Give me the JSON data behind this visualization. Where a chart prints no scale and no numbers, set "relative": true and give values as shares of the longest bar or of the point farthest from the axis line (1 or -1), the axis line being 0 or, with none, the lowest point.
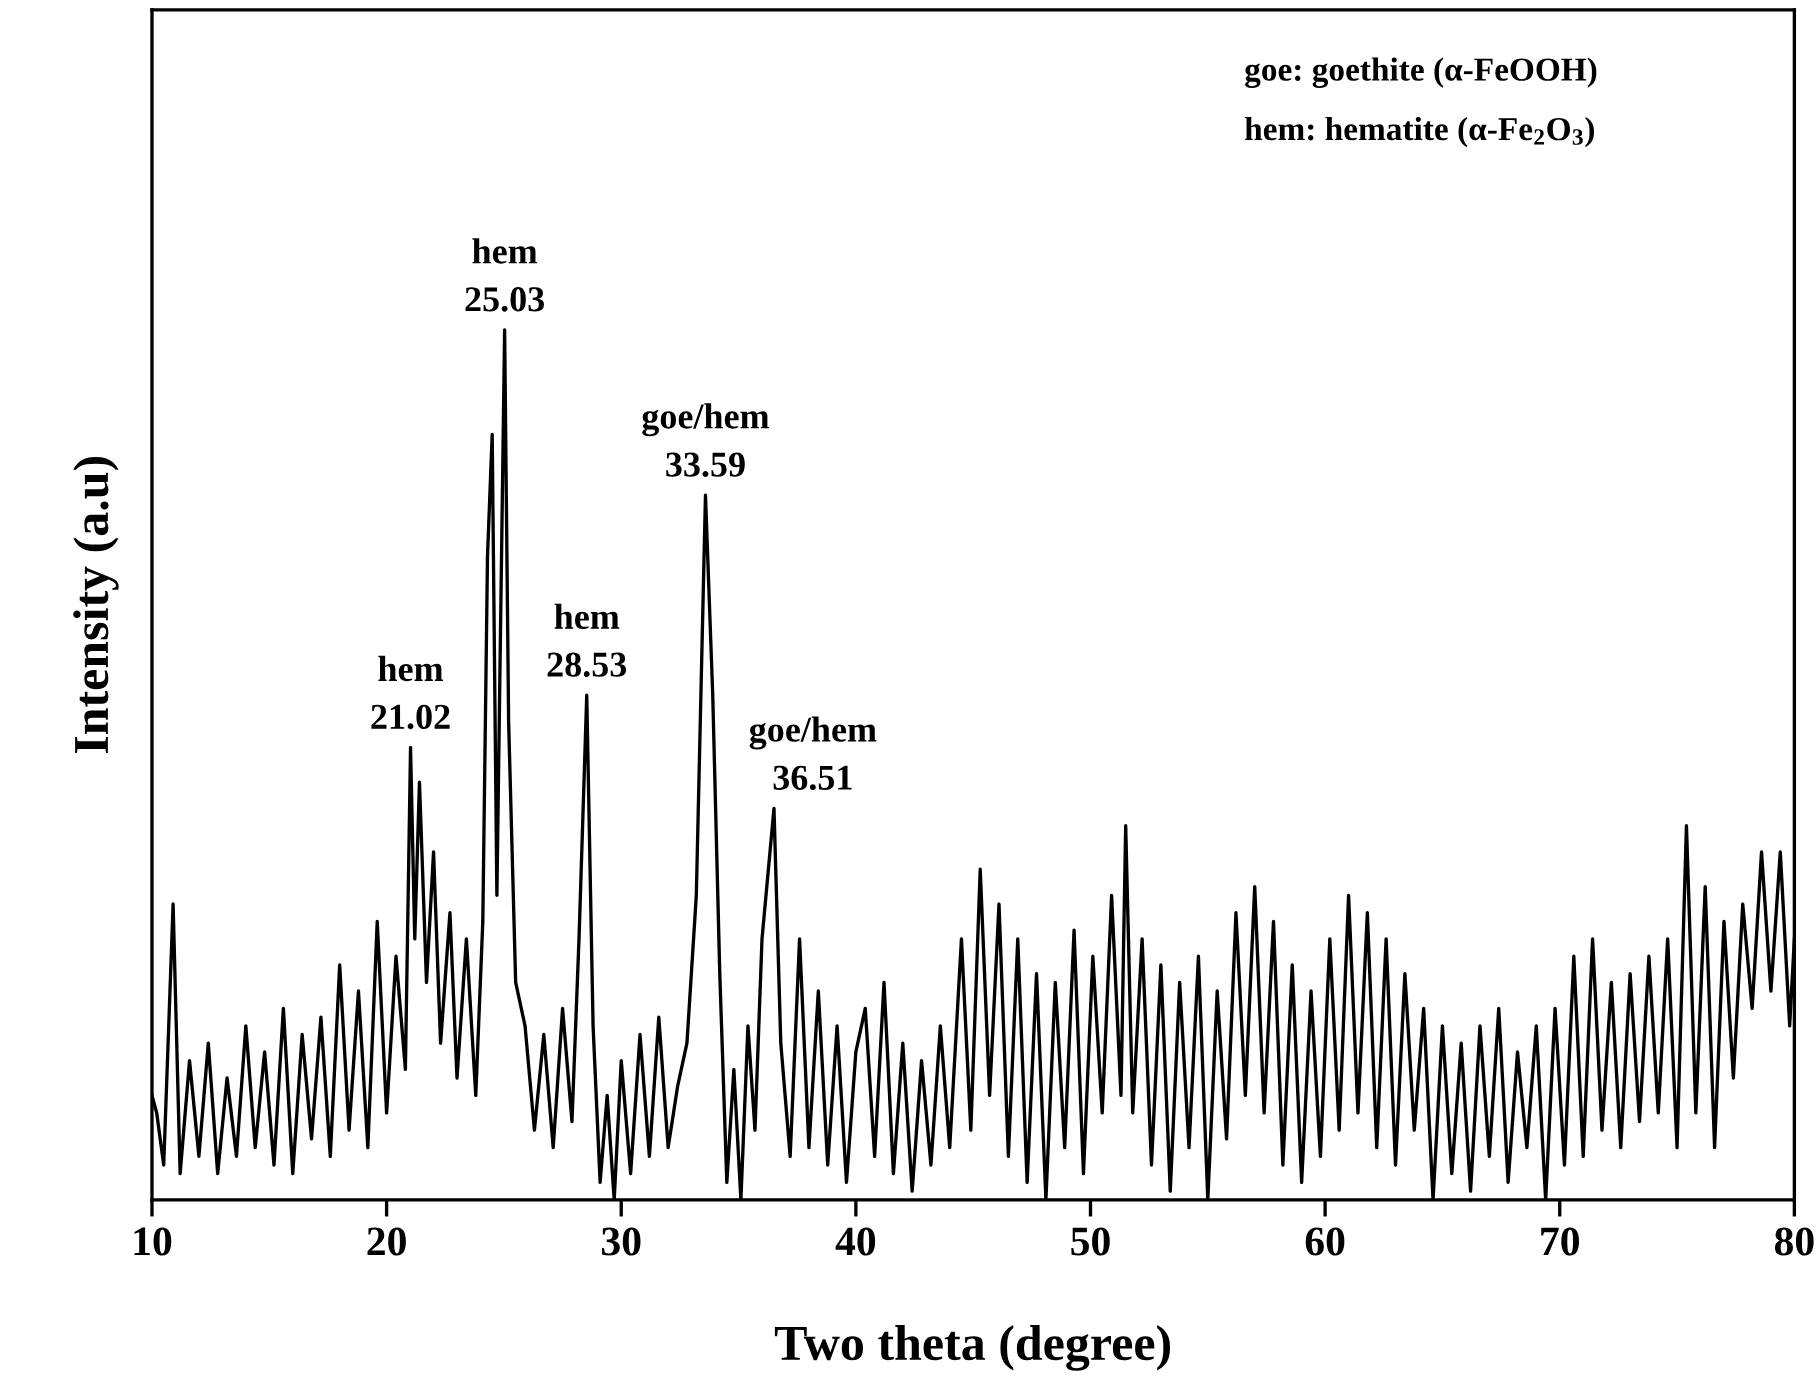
{
  "chart_data": {
    "type": "line",
    "xlabel": "Two theta (degree)",
    "ylabel": "Intensity (a.u)",
    "relative": true,
    "xlim": [
      10,
      80
    ],
    "xticks": [
      10,
      20,
      30,
      40,
      50,
      60,
      70,
      80
    ],
    "grid": false,
    "marker": "none",
    "line_style": "solid",
    "annotations": [
      {
        "text": "hem\n21.02",
        "x": 21.02,
        "y": 0.52
      },
      {
        "text": "hem\n25.03",
        "x": 25.03,
        "y": 1.0
      },
      {
        "text": "hem\n28.53",
        "x": 28.53,
        "y": 0.58
      },
      {
        "text": "goe/hem\n33.59",
        "x": 33.59,
        "y": 0.81
      },
      {
        "text": "goe/hem\n36.51",
        "x": 36.51,
        "y": 0.45
      },
      "goe: goethite (α-FeOOH)",
      "hem: hematite (α-Fe$_{2}$O$_{3}$)"
    ],
    "series": [
      {
        "color": "#000000",
        "x": [
          10.0,
          10.2,
          10.5,
          10.9,
          11.2,
          11.6,
          12.0,
          12.4,
          12.8,
          13.2,
          13.6,
          14.0,
          14.4,
          14.8,
          15.2,
          15.6,
          16.0,
          16.4,
          16.8,
          17.2,
          17.6,
          18.0,
          18.4,
          18.8,
          19.2,
          19.6,
          20.0,
          20.4,
          20.8,
          21.02,
          21.2,
          21.4,
          21.7,
          22.0,
          22.3,
          22.7,
          23.0,
          23.4,
          23.8,
          24.1,
          24.3,
          24.5,
          24.7,
          25.03,
          25.2,
          25.5,
          25.9,
          26.3,
          26.7,
          27.1,
          27.5,
          27.9,
          28.2,
          28.53,
          28.8,
          29.1,
          29.4,
          29.7,
          30.0,
          30.4,
          30.8,
          31.2,
          31.6,
          32.0,
          32.4,
          32.8,
          33.2,
          33.59,
          33.9,
          34.2,
          34.5,
          34.8,
          35.1,
          35.4,
          35.7,
          36.0,
          36.51,
          36.8,
          37.2,
          37.6,
          38.0,
          38.4,
          38.8,
          39.2,
          39.6,
          40.0,
          40.4,
          40.8,
          41.2,
          41.6,
          42.0,
          42.4,
          42.8,
          43.2,
          43.6,
          44.0,
          44.5,
          44.9,
          45.3,
          45.7,
          46.1,
          46.5,
          46.9,
          47.3,
          47.7,
          48.1,
          48.5,
          48.9,
          49.3,
          49.7,
          50.1,
          50.5,
          50.9,
          51.3,
          51.5,
          51.8,
          52.2,
          52.6,
          53.0,
          53.4,
          53.8,
          54.2,
          54.6,
          55.0,
          55.4,
          55.8,
          56.2,
          56.6,
          57.0,
          57.4,
          57.8,
          58.2,
          58.6,
          59.0,
          59.4,
          59.8,
          60.2,
          60.6,
          61.0,
          61.4,
          61.8,
          62.2,
          62.6,
          63.0,
          63.4,
          63.8,
          64.2,
          64.6,
          65.0,
          65.4,
          65.8,
          66.2,
          66.6,
          67.0,
          67.4,
          67.8,
          68.2,
          68.6,
          69.0,
          69.4,
          69.8,
          70.2,
          70.6,
          71.0,
          71.4,
          71.8,
          72.2,
          72.6,
          73.0,
          73.4,
          73.8,
          74.2,
          74.6,
          75.0,
          75.4,
          75.8,
          76.2,
          76.6,
          77.0,
          77.4,
          77.8,
          78.2,
          78.6,
          79.0,
          79.4,
          79.8,
          80.0
        ],
        "values": [
          0.12,
          0.1,
          0.04,
          0.34,
          0.03,
          0.16,
          0.05,
          0.18,
          0.03,
          0.14,
          0.05,
          0.2,
          0.06,
          0.17,
          0.04,
          0.22,
          0.03,
          0.19,
          0.07,
          0.21,
          0.05,
          0.27,
          0.08,
          0.24,
          0.06,
          0.32,
          0.1,
          0.28,
          0.15,
          0.52,
          0.3,
          0.48,
          0.25,
          0.4,
          0.18,
          0.33,
          0.14,
          0.3,
          0.12,
          0.32,
          0.74,
          0.88,
          0.35,
          1.0,
          0.55,
          0.25,
          0.2,
          0.08,
          0.19,
          0.06,
          0.22,
          0.09,
          0.3,
          0.58,
          0.2,
          0.02,
          0.12,
          0.0,
          0.16,
          0.03,
          0.19,
          0.05,
          0.21,
          0.06,
          0.13,
          0.18,
          0.35,
          0.81,
          0.58,
          0.26,
          0.02,
          0.15,
          0.0,
          0.2,
          0.08,
          0.3,
          0.45,
          0.18,
          0.05,
          0.3,
          0.06,
          0.24,
          0.04,
          0.2,
          0.02,
          0.17,
          0.22,
          0.05,
          0.25,
          0.03,
          0.18,
          0.01,
          0.16,
          0.04,
          0.2,
          0.06,
          0.3,
          0.08,
          0.38,
          0.12,
          0.34,
          0.05,
          0.3,
          0.02,
          0.26,
          0.0,
          0.25,
          0.06,
          0.31,
          0.03,
          0.28,
          0.1,
          0.35,
          0.12,
          0.43,
          0.1,
          0.3,
          0.04,
          0.27,
          0.01,
          0.25,
          0.06,
          0.28,
          0.0,
          0.24,
          0.07,
          0.33,
          0.12,
          0.36,
          0.1,
          0.32,
          0.04,
          0.27,
          0.02,
          0.24,
          0.05,
          0.3,
          0.08,
          0.35,
          0.1,
          0.33,
          0.06,
          0.3,
          0.04,
          0.26,
          0.08,
          0.22,
          0.0,
          0.2,
          0.03,
          0.18,
          0.01,
          0.2,
          0.05,
          0.22,
          0.02,
          0.17,
          0.06,
          0.2,
          0.0,
          0.22,
          0.04,
          0.28,
          0.05,
          0.3,
          0.08,
          0.25,
          0.06,
          0.26,
          0.09,
          0.28,
          0.1,
          0.3,
          0.06,
          0.43,
          0.1,
          0.36,
          0.06,
          0.32,
          0.14,
          0.34,
          0.22,
          0.4,
          0.24,
          0.4,
          0.2,
          0.3
        ]
      }
    ]
  }
}
